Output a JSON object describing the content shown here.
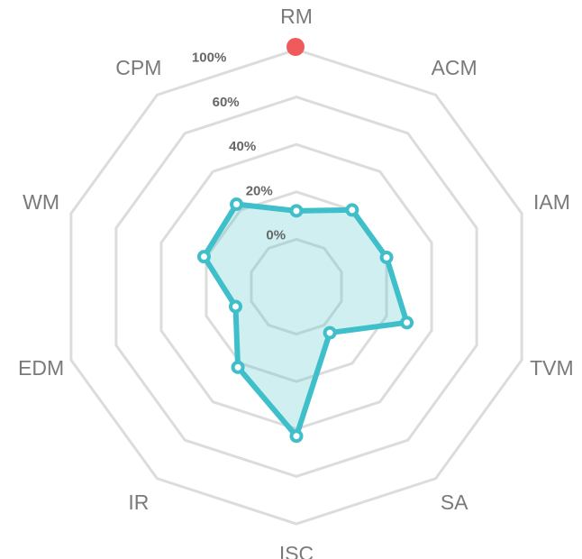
{
  "chart_data": {
    "type": "radar",
    "categories": [
      "RM",
      "ACM",
      "IAM",
      "TVM",
      "SA",
      "ISC",
      "IR",
      "EDM",
      "WM",
      "CPM"
    ],
    "series": [
      {
        "color": "#3fbfc9",
        "values": [
          12,
          20,
          20,
          29,
          4,
          43,
          22,
          7,
          21,
          23
        ]
      }
    ],
    "ylim": [
      -20,
      100
    ],
    "yticks": [
      {
        "value": 0,
        "label": "0%"
      },
      {
        "value": 20,
        "label": "20%"
      },
      {
        "value": 40,
        "label": "40%"
      },
      {
        "value": 60,
        "label": "60%"
      },
      {
        "value": 100,
        "label": "100%"
      }
    ],
    "grid": true
  }
}
